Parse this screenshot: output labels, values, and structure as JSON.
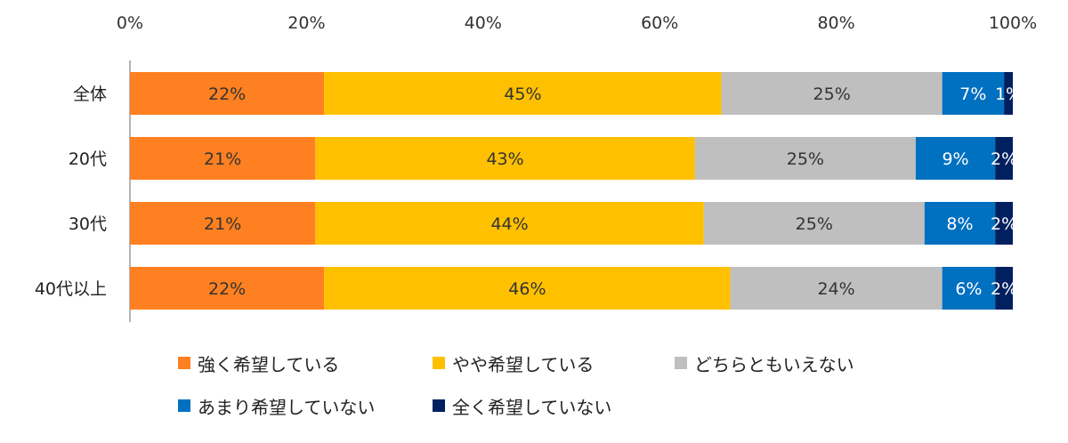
{
  "chart_data": {
    "type": "bar",
    "orientation": "horizontal",
    "stacked": true,
    "title": "",
    "xlabel": "",
    "ylabel": "",
    "xlim": [
      0,
      100
    ],
    "x_ticks": [
      "0%",
      "20%",
      "40%",
      "60%",
      "80%",
      "100%"
    ],
    "categories": [
      "全体",
      "20代",
      "30代",
      "40代以上"
    ],
    "series": [
      {
        "name": "強く希望している",
        "color": "#FF8021",
        "values": [
          22,
          21,
          21,
          22
        ],
        "labels": [
          "22%",
          "21%",
          "21%",
          "22%"
        ]
      },
      {
        "name": "やや希望している",
        "color": "#FFC000",
        "values": [
          45,
          43,
          44,
          46
        ],
        "labels": [
          "45%",
          "43%",
          "44%",
          "46%"
        ]
      },
      {
        "name": "どちらともいえない",
        "color": "#BFBFBF",
        "values": [
          25,
          25,
          25,
          24
        ],
        "labels": [
          "25%",
          "25%",
          "25%",
          "24%"
        ]
      },
      {
        "name": "あまり希望していない",
        "color": "#0070C0",
        "values": [
          7,
          9,
          8,
          6
        ],
        "labels": [
          "7%",
          "9%",
          "8%",
          "6%"
        ]
      },
      {
        "name": "全く希望していない",
        "color": "#002060",
        "values": [
          1,
          2,
          2,
          2
        ],
        "labels": [
          "1%",
          "2%",
          "2%",
          "2%"
        ]
      }
    ],
    "legend_position": "bottom",
    "grid": false
  }
}
